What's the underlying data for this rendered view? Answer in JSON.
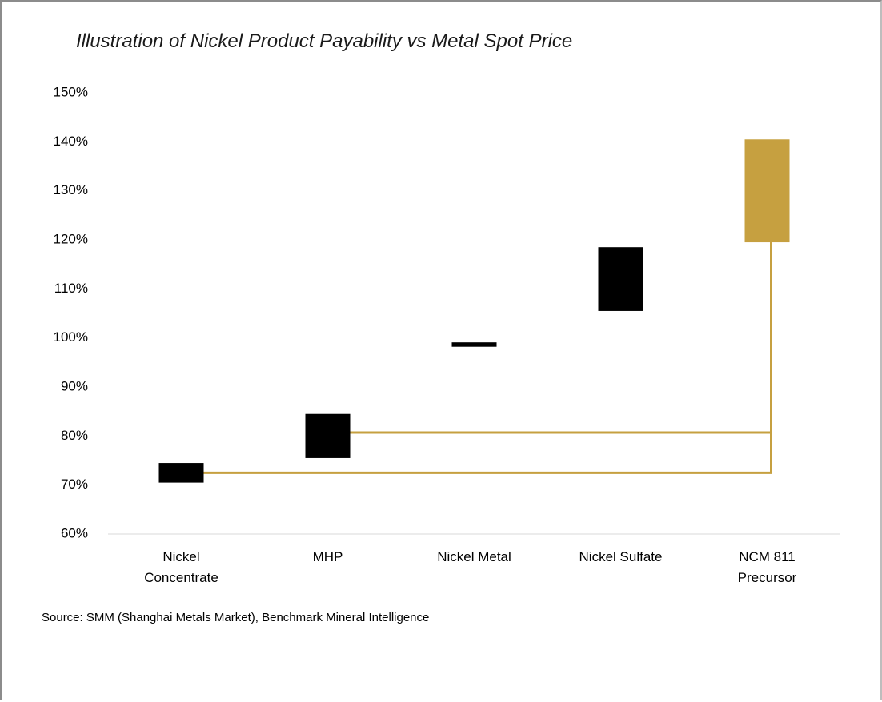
{
  "chart_data": {
    "type": "range_bar",
    "title": "Illustration of Nickel Product Payability vs Metal Spot Price",
    "categories": [
      "Nickel\nConcentrate",
      "MHP",
      "Nickel Metal",
      "Nickel Sulfate",
      "NCM 811\nPrecursor"
    ],
    "values": [
      [
        70.5,
        74.5
      ],
      [
        75.5,
        84.5
      ],
      [
        98.2,
        99.1
      ],
      [
        105.5,
        118.5
      ],
      [
        119.5,
        140.5
      ]
    ],
    "colors": [
      "#000000",
      "#000000",
      "#000000",
      "#000000",
      "#c6a040"
    ],
    "connectors": [
      72.5,
      80.7
    ],
    "connector_color": "#c6a040",
    "ylim": [
      60,
      150
    ],
    "yticks": [
      {
        "value": 60,
        "label": "60%"
      },
      {
        "value": 70,
        "label": "70%"
      },
      {
        "value": 80,
        "label": "80%"
      },
      {
        "value": 90,
        "label": "90%"
      },
      {
        "value": 100,
        "label": "100%"
      },
      {
        "value": 110,
        "label": "110%"
      },
      {
        "value": 120,
        "label": "120%"
      },
      {
        "value": 130,
        "label": "130%"
      },
      {
        "value": 140,
        "label": "140%"
      },
      {
        "value": 150,
        "label": "150%"
      }
    ],
    "grid": false,
    "source": "Source: SMM (Shanghai Metals Market), Benchmark Mineral Intelligence"
  }
}
